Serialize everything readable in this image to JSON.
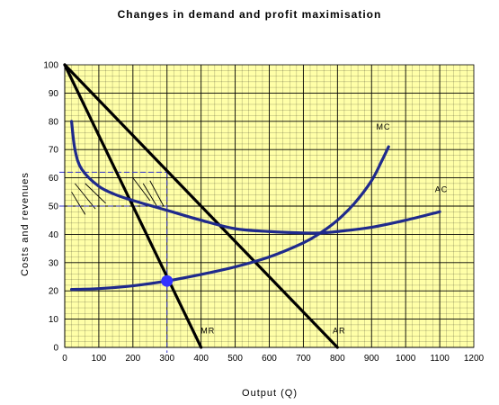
{
  "chart_data": {
    "type": "line",
    "title": "Changes in demand and profit maximisation",
    "xlabel": "Output (Q)",
    "ylabel": "Costs and revenues",
    "xlim": [
      0,
      1200
    ],
    "ylim": [
      0,
      100
    ],
    "x_ticks": [
      0,
      100,
      200,
      300,
      400,
      500,
      600,
      700,
      800,
      900,
      1000,
      1100,
      1200
    ],
    "y_ticks": [
      0,
      10,
      20,
      30,
      40,
      50,
      60,
      70,
      80,
      90,
      100
    ],
    "grid": true,
    "plot_background": "#FFFFA8",
    "series": [
      {
        "name": "MR",
        "color": "#000000",
        "x": [
          0,
          400
        ],
        "y": [
          100,
          0
        ]
      },
      {
        "name": "AR",
        "color": "#000000",
        "x": [
          0,
          800
        ],
        "y": [
          100,
          0
        ]
      },
      {
        "name": "MC",
        "color": "#1F2A8C",
        "x": [
          20,
          100,
          200,
          300,
          400,
          500,
          600,
          700,
          750,
          800,
          850,
          900,
          930,
          950
        ],
        "y": [
          20.5,
          20.8,
          21.8,
          23.5,
          25.8,
          28.5,
          32,
          37,
          40.5,
          45,
          51,
          59,
          66,
          71
        ]
      },
      {
        "name": "AC",
        "color": "#1F2A8C",
        "x": [
          20,
          30,
          50,
          100,
          150,
          200,
          300,
          400,
          500,
          600,
          700,
          750,
          800,
          900,
          1000,
          1100
        ],
        "y": [
          80,
          70,
          63,
          57,
          54,
          52,
          48.5,
          45,
          42,
          41,
          40.5,
          40.5,
          41,
          42.5,
          45,
          48
        ]
      }
    ],
    "highlight_point": {
      "x": 300,
      "y": 23.5,
      "color": "#3333FF"
    },
    "reference_lines": {
      "x": 300,
      "y_levels": [
        50,
        62
      ],
      "color": "#3333CC"
    }
  }
}
